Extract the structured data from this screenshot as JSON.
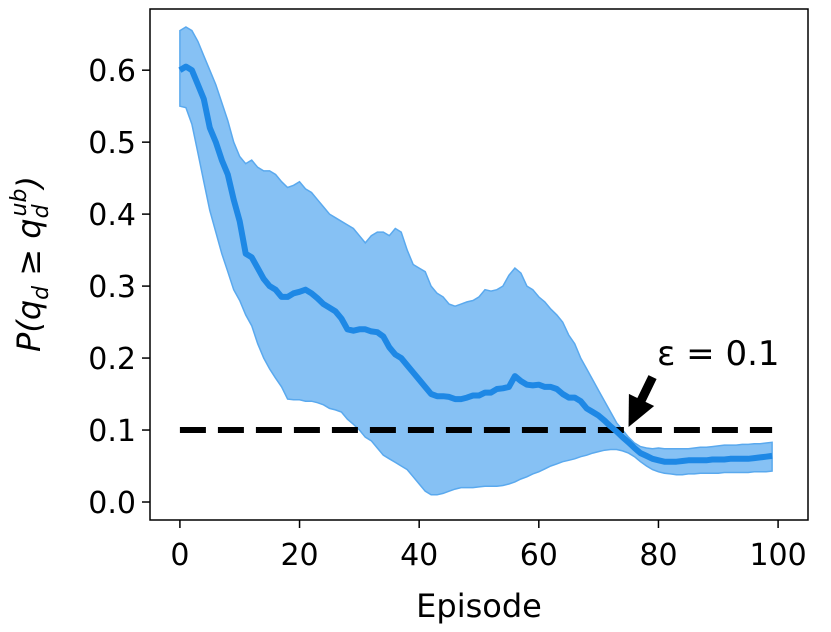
{
  "chart_data": {
    "type": "line",
    "xlabel": "Episode",
    "ylabel": "P(q_d ≥ q_d^ub)",
    "ylabel_parts": {
      "prefix": "P(q",
      "sub1": "d",
      "mid": " ≥ q",
      "sub2": "d",
      "sup2": "ub",
      "suffix": ")"
    },
    "xlim": [
      -5,
      105
    ],
    "ylim": [
      -0.025,
      0.685
    ],
    "xticks": [
      0,
      20,
      40,
      60,
      80,
      100
    ],
    "yticks": [
      0.0,
      0.1,
      0.2,
      0.3,
      0.4,
      0.5,
      0.6
    ],
    "xtick_labels": [
      "0",
      "20",
      "40",
      "60",
      "80",
      "100"
    ],
    "ytick_labels": [
      "0.0",
      "0.1",
      "0.2",
      "0.3",
      "0.4",
      "0.5",
      "0.6"
    ],
    "grid": false,
    "series": [
      {
        "color": "#1e88e5",
        "band_color": "#86c1f4",
        "x": [
          0,
          1,
          2,
          3,
          4,
          5,
          6,
          7,
          8,
          9,
          10,
          11,
          12,
          13,
          14,
          15,
          16,
          17,
          18,
          19,
          20,
          21,
          22,
          23,
          24,
          25,
          26,
          27,
          28,
          29,
          30,
          31,
          32,
          33,
          34,
          35,
          36,
          37,
          38,
          39,
          40,
          41,
          42,
          43,
          44,
          45,
          46,
          47,
          48,
          49,
          50,
          51,
          52,
          53,
          54,
          55,
          56,
          57,
          58,
          59,
          60,
          61,
          62,
          63,
          64,
          65,
          66,
          67,
          68,
          69,
          70,
          71,
          72,
          73,
          74,
          75,
          76,
          77,
          78,
          79,
          80,
          81,
          82,
          83,
          84,
          85,
          86,
          87,
          88,
          89,
          90,
          91,
          92,
          93,
          94,
          95,
          96,
          97,
          98,
          99
        ],
        "mean": [
          0.6,
          0.605,
          0.6,
          0.58,
          0.56,
          0.52,
          0.5,
          0.475,
          0.455,
          0.42,
          0.39,
          0.345,
          0.34,
          0.325,
          0.31,
          0.3,
          0.295,
          0.285,
          0.285,
          0.29,
          0.292,
          0.295,
          0.29,
          0.283,
          0.275,
          0.27,
          0.265,
          0.255,
          0.24,
          0.238,
          0.24,
          0.24,
          0.237,
          0.236,
          0.23,
          0.215,
          0.205,
          0.2,
          0.19,
          0.18,
          0.17,
          0.16,
          0.15,
          0.147,
          0.147,
          0.146,
          0.143,
          0.143,
          0.145,
          0.148,
          0.148,
          0.152,
          0.152,
          0.157,
          0.158,
          0.16,
          0.175,
          0.168,
          0.163,
          0.162,
          0.163,
          0.16,
          0.16,
          0.157,
          0.15,
          0.145,
          0.145,
          0.14,
          0.13,
          0.125,
          0.12,
          0.113,
          0.105,
          0.098,
          0.09,
          0.083,
          0.075,
          0.068,
          0.064,
          0.06,
          0.058,
          0.056,
          0.056,
          0.056,
          0.057,
          0.058,
          0.058,
          0.058,
          0.058,
          0.059,
          0.059,
          0.059,
          0.06,
          0.06,
          0.06,
          0.06,
          0.061,
          0.062,
          0.063,
          0.064
        ],
        "upper": [
          0.655,
          0.66,
          0.655,
          0.64,
          0.62,
          0.6,
          0.58,
          0.555,
          0.53,
          0.5,
          0.48,
          0.47,
          0.475,
          0.465,
          0.46,
          0.46,
          0.455,
          0.445,
          0.437,
          0.44,
          0.445,
          0.435,
          0.43,
          0.42,
          0.41,
          0.4,
          0.395,
          0.39,
          0.385,
          0.38,
          0.37,
          0.36,
          0.37,
          0.375,
          0.375,
          0.37,
          0.38,
          0.375,
          0.35,
          0.33,
          0.325,
          0.32,
          0.3,
          0.29,
          0.285,
          0.275,
          0.272,
          0.275,
          0.278,
          0.28,
          0.285,
          0.295,
          0.293,
          0.295,
          0.3,
          0.315,
          0.325,
          0.318,
          0.3,
          0.295,
          0.285,
          0.278,
          0.268,
          0.26,
          0.25,
          0.232,
          0.22,
          0.2,
          0.185,
          0.17,
          0.155,
          0.14,
          0.125,
          0.11,
          0.1,
          0.09,
          0.082,
          0.077,
          0.075,
          0.074,
          0.075,
          0.074,
          0.074,
          0.074,
          0.074,
          0.074,
          0.075,
          0.076,
          0.076,
          0.077,
          0.078,
          0.079,
          0.079,
          0.079,
          0.08,
          0.08,
          0.081,
          0.081,
          0.082,
          0.083
        ],
        "lower": [
          0.55,
          0.548,
          0.525,
          0.485,
          0.445,
          0.405,
          0.375,
          0.345,
          0.32,
          0.295,
          0.28,
          0.26,
          0.245,
          0.22,
          0.2,
          0.185,
          0.172,
          0.16,
          0.143,
          0.142,
          0.142,
          0.14,
          0.14,
          0.138,
          0.135,
          0.13,
          0.128,
          0.125,
          0.115,
          0.108,
          0.1,
          0.09,
          0.085,
          0.075,
          0.065,
          0.06,
          0.055,
          0.05,
          0.045,
          0.035,
          0.025,
          0.015,
          0.01,
          0.01,
          0.012,
          0.015,
          0.018,
          0.02,
          0.02,
          0.02,
          0.021,
          0.022,
          0.022,
          0.022,
          0.023,
          0.025,
          0.028,
          0.032,
          0.035,
          0.039,
          0.042,
          0.046,
          0.05,
          0.053,
          0.056,
          0.058,
          0.06,
          0.063,
          0.065,
          0.068,
          0.07,
          0.072,
          0.073,
          0.073,
          0.071,
          0.068,
          0.063,
          0.056,
          0.05,
          0.045,
          0.042,
          0.04,
          0.039,
          0.038,
          0.038,
          0.039,
          0.039,
          0.04,
          0.04,
          0.04,
          0.04,
          0.041,
          0.041,
          0.041,
          0.041,
          0.041,
          0.042,
          0.042,
          0.042,
          0.043
        ]
      }
    ],
    "threshold": {
      "y": 0.1,
      "x_start": 0,
      "x_end": 99,
      "style": "dashed",
      "color": "#000000"
    },
    "annotation": {
      "text": "ε = 0.1",
      "arrow_to": [
        75,
        0.1
      ]
    }
  }
}
